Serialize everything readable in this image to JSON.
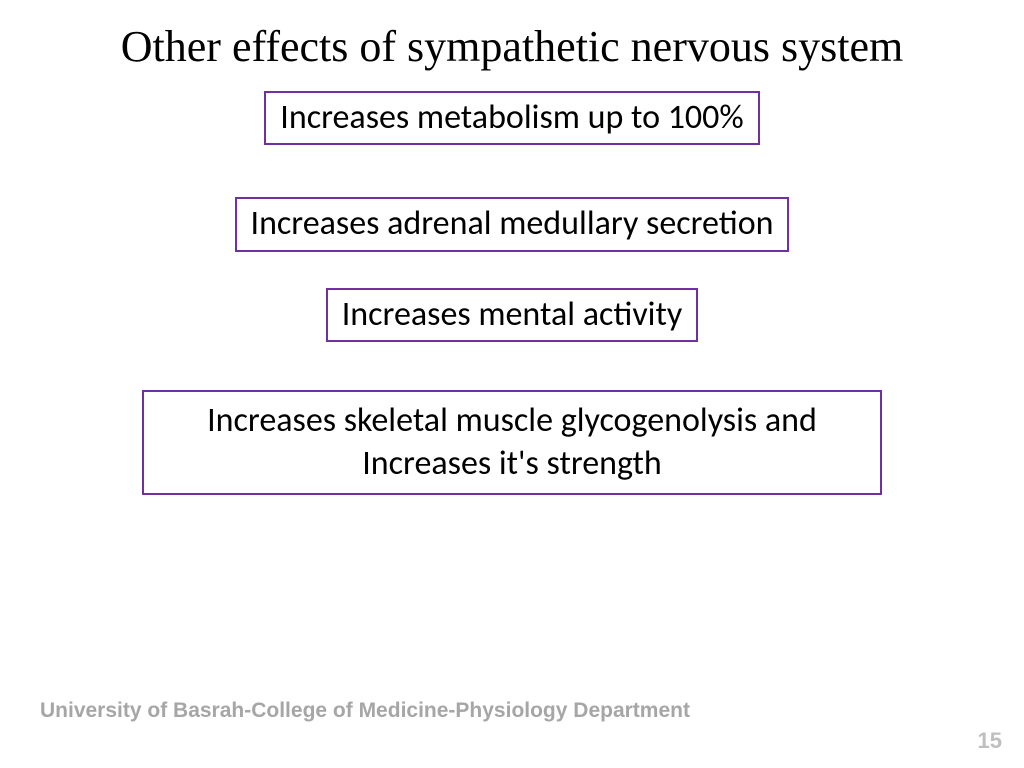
{
  "title": "Other effects of sympathetic nervous system",
  "boxes": {
    "effect1": "Increases metabolism up to 100%",
    "effect2": "Increases adrenal medullary secretion",
    "effect3": "Increases mental activity",
    "effect4": "Increases skeletal muscle glycogenolysis and Increases it's strength"
  },
  "footer": "University of Basrah-College of Medicine-Physiology Department",
  "page_number": "15",
  "styling": {
    "background": "#ffffff",
    "title_color": "#000000",
    "title_fontsize": 44,
    "title_font": "Times New Roman",
    "box_border_color": "#7030a0",
    "box_border_width": 2,
    "box_text_color": "#000000",
    "box_fontsize": 34,
    "box_font": "Calibri",
    "footer_color": "#a6a6a6",
    "footer_fontsize": 21,
    "page_number_color": "#bfbfbf",
    "page_number_fontsize": 22
  }
}
